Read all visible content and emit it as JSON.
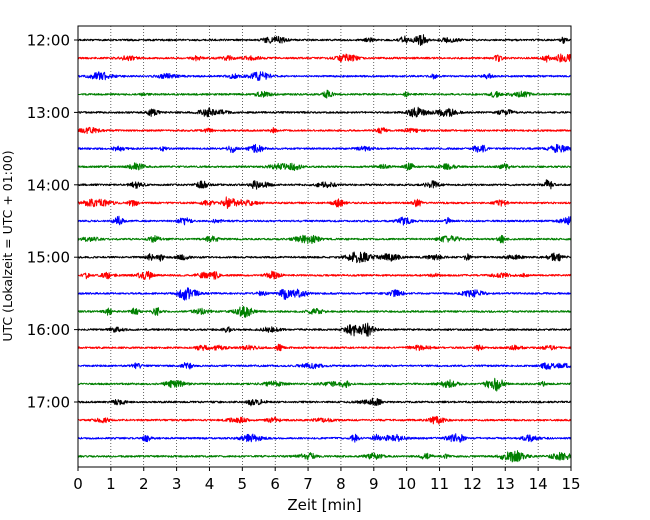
{
  "chart_data": {
    "type": "line",
    "xlabel": "Zeit  [min]",
    "ylabel": "UTC (Lokalzeit = UTC + 01:00)",
    "xlim": [
      0,
      15
    ],
    "x_ticks": [
      "0",
      "1",
      "2",
      "3",
      "4",
      "5",
      "6",
      "7",
      "8",
      "9",
      "10",
      "11",
      "12",
      "13",
      "14",
      "15"
    ],
    "y_ticks": [
      "12:00",
      "13:00",
      "14:00",
      "15:00",
      "16:00",
      "17:00"
    ],
    "trace_interval_min": 15,
    "first_trace_start": "12:00",
    "trace_count": 24,
    "trace_colors": [
      "#000000",
      "#ff0000",
      "#0000ff",
      "#008000"
    ],
    "vertical_grid": "dotted, at every minute",
    "seismogram_traces": [
      {
        "start": "12:00",
        "color": "#000000"
      },
      {
        "start": "12:15",
        "color": "#ff0000"
      },
      {
        "start": "12:30",
        "color": "#0000ff"
      },
      {
        "start": "12:45",
        "color": "#008000"
      },
      {
        "start": "13:00",
        "color": "#000000"
      },
      {
        "start": "13:15",
        "color": "#ff0000"
      },
      {
        "start": "13:30",
        "color": "#0000ff"
      },
      {
        "start": "13:45",
        "color": "#008000"
      },
      {
        "start": "14:00",
        "color": "#000000"
      },
      {
        "start": "14:15",
        "color": "#ff0000"
      },
      {
        "start": "14:30",
        "color": "#0000ff"
      },
      {
        "start": "14:45",
        "color": "#008000"
      },
      {
        "start": "15:00",
        "color": "#000000"
      },
      {
        "start": "15:15",
        "color": "#ff0000"
      },
      {
        "start": "15:30",
        "color": "#0000ff"
      },
      {
        "start": "15:45",
        "color": "#008000"
      },
      {
        "start": "16:00",
        "color": "#000000"
      },
      {
        "start": "16:15",
        "color": "#ff0000"
      },
      {
        "start": "16:30",
        "color": "#0000ff"
      },
      {
        "start": "16:45",
        "color": "#008000"
      },
      {
        "start": "17:00",
        "color": "#000000"
      },
      {
        "start": "17:15",
        "color": "#ff0000"
      },
      {
        "start": "17:30",
        "color": "#0000ff"
      },
      {
        "start": "17:45",
        "color": "#008000"
      }
    ]
  }
}
